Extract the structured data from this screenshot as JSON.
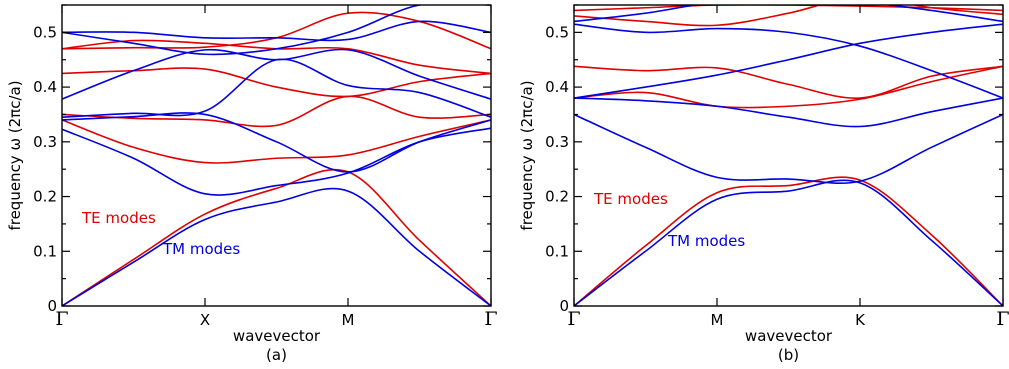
{
  "chart_data": [
    {
      "type": "line",
      "panel_label": "(a)",
      "xlabel": "wavevector",
      "ylabel": "frequency ω (2πc/a)",
      "ylim": [
        0,
        0.55
      ],
      "yticks": [
        "0",
        "0.1",
        "0.2",
        "0.3",
        "0.4",
        "0.5"
      ],
      "yticks_values": [
        0,
        0.1,
        0.2,
        0.3,
        0.4,
        0.5
      ],
      "kpoints": [
        "Γ",
        "X",
        "M",
        "Γ"
      ],
      "grid": false,
      "annotations": [
        {
          "text": "TE modes",
          "color": "#e00000"
        },
        {
          "text": "TM modes",
          "color": "#0000e0"
        }
      ],
      "x": [
        0,
        0.5,
        1,
        1.5,
        2,
        2.5,
        3
      ],
      "series": [
        {
          "color": "#e00000",
          "values": [
            0,
            0.085,
            0.168,
            0.215,
            0.245,
            0.12,
            0
          ]
        },
        {
          "color": "#e00000",
          "values": [
            0.34,
            0.29,
            0.262,
            0.27,
            0.276,
            0.31,
            0.34
          ]
        },
        {
          "color": "#e00000",
          "values": [
            0.35,
            0.343,
            0.34,
            0.33,
            0.383,
            0.345,
            0.35
          ]
        },
        {
          "color": "#e00000",
          "values": [
            0.425,
            0.43,
            0.433,
            0.4,
            0.383,
            0.41,
            0.425
          ]
        },
        {
          "color": "#e00000",
          "values": [
            0.47,
            0.472,
            0.473,
            0.49,
            0.535,
            0.52,
            0.47
          ]
        },
        {
          "color": "#e00000",
          "values": [
            0.47,
            0.485,
            0.48,
            0.47,
            0.47,
            0.44,
            0.425
          ]
        },
        {
          "color": "#0000e0",
          "values": [
            0,
            0.08,
            0.158,
            0.19,
            0.21,
            0.1,
            0
          ]
        },
        {
          "color": "#0000e0",
          "values": [
            0.323,
            0.27,
            0.205,
            0.22,
            0.243,
            0.3,
            0.325
          ]
        },
        {
          "color": "#0000e0",
          "values": [
            0.34,
            0.346,
            0.35,
            0.3,
            0.245,
            0.3,
            0.34
          ]
        },
        {
          "color": "#0000e0",
          "values": [
            0.345,
            0.352,
            0.356,
            0.45,
            0.403,
            0.39,
            0.345
          ]
        },
        {
          "color": "#0000e0",
          "values": [
            0.378,
            0.43,
            0.468,
            0.45,
            0.468,
            0.42,
            0.378
          ]
        },
        {
          "color": "#0000e0",
          "values": [
            0.5,
            0.5,
            0.49,
            0.49,
            0.487,
            0.52,
            0.5
          ]
        },
        {
          "color": "#0000e0",
          "values": [
            0.5,
            0.48,
            0.46,
            0.47,
            0.5,
            0.55,
            0.55
          ]
        }
      ]
    },
    {
      "type": "line",
      "panel_label": "(b)",
      "xlabel": "wavevector",
      "ylabel": "frequency ω (2πc/a)",
      "ylim": [
        0,
        0.55
      ],
      "yticks": [
        "0",
        "0.1",
        "0.2",
        "0.3",
        "0.4",
        "0.5"
      ],
      "yticks_values": [
        0,
        0.1,
        0.2,
        0.3,
        0.4,
        0.5
      ],
      "kpoints": [
        "Γ",
        "M",
        "K",
        "Γ"
      ],
      "grid": false,
      "annotations": [
        {
          "text": "TE modes",
          "color": "#e00000"
        },
        {
          "text": "TM modes",
          "color": "#0000e0"
        }
      ],
      "x": [
        0,
        0.5,
        1,
        1.5,
        2,
        2.5,
        3
      ],
      "series": [
        {
          "color": "#e00000",
          "values": [
            0,
            0.11,
            0.207,
            0.22,
            0.23,
            0.13,
            0
          ]
        },
        {
          "color": "#e00000",
          "values": [
            0.38,
            0.39,
            0.365,
            0.365,
            0.378,
            0.41,
            0.438
          ]
        },
        {
          "color": "#e00000",
          "values": [
            0.438,
            0.43,
            0.435,
            0.405,
            0.38,
            0.42,
            0.438
          ]
        },
        {
          "color": "#e00000",
          "values": [
            0.53,
            0.52,
            0.513,
            0.535,
            0.565,
            0.545,
            0.533
          ]
        },
        {
          "color": "#e00000",
          "values": [
            0.54,
            0.545,
            0.55,
            0.55,
            0.548,
            0.545,
            0.54
          ]
        },
        {
          "color": "#0000e0",
          "values": [
            0,
            0.1,
            0.195,
            0.21,
            0.225,
            0.12,
            0
          ]
        },
        {
          "color": "#0000e0",
          "values": [
            0.35,
            0.29,
            0.235,
            0.232,
            0.228,
            0.29,
            0.35
          ]
        },
        {
          "color": "#0000e0",
          "values": [
            0.38,
            0.375,
            0.365,
            0.345,
            0.328,
            0.355,
            0.38
          ]
        },
        {
          "color": "#0000e0",
          "values": [
            0.38,
            0.4,
            0.422,
            0.45,
            0.48,
            0.5,
            0.515
          ]
        },
        {
          "color": "#0000e0",
          "values": [
            0.515,
            0.5,
            0.507,
            0.5,
            0.475,
            0.43,
            0.38
          ]
        },
        {
          "color": "#0000e0",
          "values": [
            0.52,
            0.535,
            0.555,
            0.555,
            0.555,
            0.54,
            0.52
          ]
        }
      ]
    }
  ]
}
